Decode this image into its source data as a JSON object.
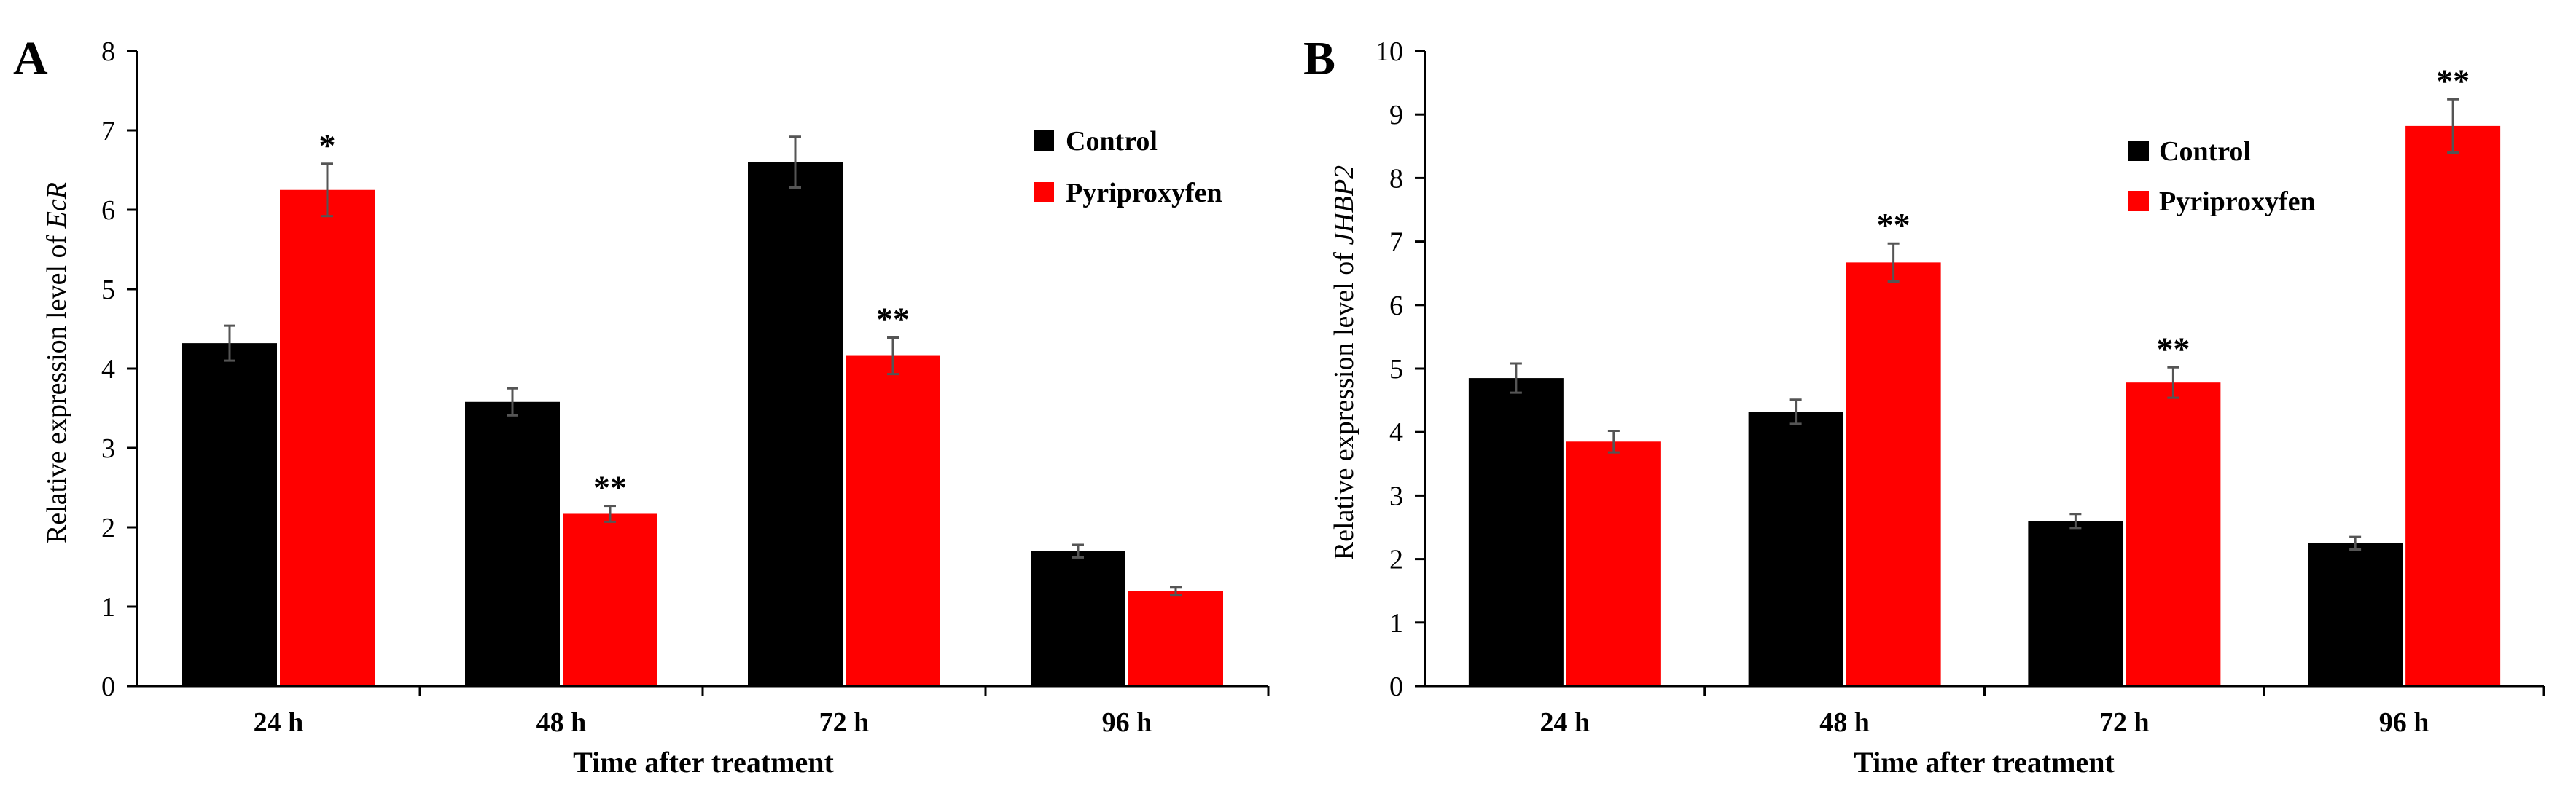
{
  "chart_data": [
    {
      "panel": "A",
      "type": "bar",
      "categories": [
        "24 h",
        "48 h",
        "72 h",
        "96 h"
      ],
      "series": [
        {
          "name": "Control",
          "color": "#000000",
          "values": [
            4.32,
            3.58,
            6.6,
            1.7
          ],
          "errors": [
            0.22,
            0.17,
            0.32,
            0.08
          ],
          "significance": [
            "",
            "",
            "",
            ""
          ]
        },
        {
          "name": "Pyriproxyfen",
          "color": "#ff0000",
          "values": [
            6.25,
            2.17,
            4.16,
            1.2
          ],
          "errors": [
            0.33,
            0.1,
            0.23,
            0.05
          ],
          "significance": [
            "*",
            "**",
            "**",
            ""
          ]
        }
      ],
      "xlabel": "Time after treatment",
      "ylabel_prefix": "Relative expression level of ",
      "ylabel_gene": "EcR",
      "ylim": [
        0,
        8
      ],
      "yticks": [
        "0",
        "1",
        "2",
        "3",
        "4",
        "5",
        "6",
        "7",
        "8"
      ],
      "grid": false,
      "legend_position": "top-right"
    },
    {
      "panel": "B",
      "type": "bar",
      "categories": [
        "24 h",
        "48 h",
        "72 h",
        "96 h"
      ],
      "series": [
        {
          "name": "Control",
          "color": "#000000",
          "values": [
            4.85,
            4.32,
            2.6,
            2.25
          ],
          "errors": [
            0.23,
            0.19,
            0.11,
            0.1
          ],
          "significance": [
            "",
            "",
            "",
            ""
          ]
        },
        {
          "name": "Pyriproxyfen",
          "color": "#ff0000",
          "values": [
            3.85,
            6.67,
            4.78,
            8.82
          ],
          "errors": [
            0.17,
            0.3,
            0.24,
            0.42
          ],
          "significance": [
            "",
            "**",
            "**",
            "**"
          ]
        }
      ],
      "xlabel": "Time after treatment",
      "ylabel_prefix": "Relative expression level of ",
      "ylabel_gene": "JHBP2",
      "ylim": [
        0,
        10
      ],
      "yticks": [
        "0",
        "1",
        "2",
        "3",
        "4",
        "5",
        "6",
        "7",
        "8",
        "9",
        "10"
      ],
      "grid": false,
      "legend_position": "top-right"
    }
  ]
}
